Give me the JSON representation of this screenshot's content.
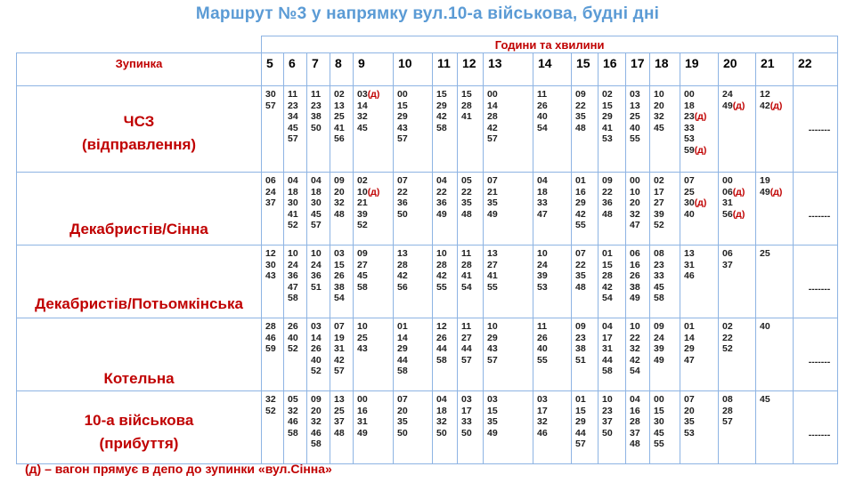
{
  "title": "Маршрут №3 у напрямку вул.10-а військова, будні дні",
  "header": {
    "group_label": "Години та хвилини",
    "stop_label": "Зупинка",
    "hours": [
      "5",
      "6",
      "7",
      "8",
      "9",
      "10",
      "11",
      "12",
      "13",
      "14",
      "15",
      "16",
      "17",
      "18",
      "19",
      "20",
      "21",
      "22"
    ]
  },
  "stops": [
    {
      "name": [
        "ЧСЗ",
        "(відправлення)"
      ],
      "cells": [
        [
          "30",
          "57"
        ],
        [
          "11",
          "23",
          "34",
          "45",
          "57"
        ],
        [
          "11",
          "23",
          "38",
          "50"
        ],
        [
          "02",
          "13",
          "25",
          "41",
          "56"
        ],
        [
          "03(д)",
          "14",
          "32",
          "45"
        ],
        [
          "00",
          "15",
          "29",
          "43",
          "57"
        ],
        [
          "15",
          "29",
          "42",
          "58"
        ],
        [
          "15",
          "28",
          "41"
        ],
        [
          "00",
          "14",
          "28",
          "42",
          "57"
        ],
        [
          "11",
          "26",
          "40",
          "54"
        ],
        [
          "09",
          "22",
          "35",
          "48"
        ],
        [
          "02",
          "15",
          "29",
          "41",
          "53"
        ],
        [
          "03",
          "13",
          "25",
          "40",
          "55"
        ],
        [
          "10",
          "20",
          "32",
          "45"
        ],
        [
          "00",
          "18",
          "23(д)",
          "33",
          "53",
          "59(д)"
        ],
        [
          "24",
          "49(д)"
        ],
        [
          "12",
          "42(д)"
        ],
        [
          "-------"
        ]
      ]
    },
    {
      "name": [
        "Декабристів/Сінна"
      ],
      "cells": [
        [
          "06",
          "24",
          "37"
        ],
        [
          "04",
          "18",
          "30",
          "41",
          "52"
        ],
        [
          "04",
          "18",
          "30",
          "45",
          "57"
        ],
        [
          "09",
          "20",
          "32",
          "48"
        ],
        [
          "02",
          "10(д)",
          "21",
          "39",
          "52"
        ],
        [
          "07",
          "22",
          "36",
          "50"
        ],
        [
          "04",
          "22",
          "36",
          "49"
        ],
        [
          "05",
          "22",
          "35",
          "48"
        ],
        [
          "07",
          "21",
          "35",
          "49"
        ],
        [
          "04",
          "18",
          "33",
          "47"
        ],
        [
          "01",
          "16",
          "29",
          "42",
          "55"
        ],
        [
          "09",
          "22",
          "36",
          "48"
        ],
        [
          "00",
          "10",
          "20",
          "32",
          "47"
        ],
        [
          "02",
          "17",
          "27",
          "39",
          "52"
        ],
        [
          "07",
          "25",
          "30(д)",
          "40"
        ],
        [
          "00",
          "06(д)",
          "31",
          "56(д)"
        ],
        [
          "19",
          "49(д)"
        ],
        [
          "-------"
        ]
      ]
    },
    {
      "name": [
        "Декабристів/Потьомкінська"
      ],
      "cells": [
        [
          "12",
          "30",
          "43"
        ],
        [
          "10",
          "24",
          "36",
          "47",
          "58"
        ],
        [
          "10",
          "24",
          "36",
          "51"
        ],
        [
          "03",
          "15",
          "26",
          "38",
          "54"
        ],
        [
          "09",
          "27",
          "45",
          "58"
        ],
        [
          "13",
          "28",
          "42",
          "56"
        ],
        [
          "10",
          "28",
          "42",
          "55"
        ],
        [
          "11",
          "28",
          "41",
          "54"
        ],
        [
          "13",
          "27",
          "41",
          "55"
        ],
        [
          "10",
          "24",
          "39",
          "53"
        ],
        [
          "07",
          "22",
          "35",
          "48"
        ],
        [
          "01",
          "15",
          "28",
          "42",
          "54"
        ],
        [
          "06",
          "16",
          "26",
          "38",
          "49"
        ],
        [
          "08",
          "23",
          "33",
          "45",
          "58"
        ],
        [
          "13",
          "31",
          "46"
        ],
        [
          "06",
          "37"
        ],
        [
          "25"
        ],
        [
          "-------"
        ]
      ]
    },
    {
      "name": [
        "Котельна"
      ],
      "cells": [
        [
          "28",
          "46",
          "59"
        ],
        [
          "26",
          "40",
          "52"
        ],
        [
          "03",
          "14",
          "26",
          "40",
          "52"
        ],
        [
          "07",
          "19",
          "31",
          "42",
          "57"
        ],
        [
          "10",
          "25",
          "43"
        ],
        [
          "01",
          "14",
          "29",
          "44",
          "58"
        ],
        [
          "12",
          "26",
          "44",
          "58"
        ],
        [
          "11",
          "27",
          "44",
          "57"
        ],
        [
          "10",
          "29",
          "43",
          "57"
        ],
        [
          "11",
          "26",
          "40",
          "55"
        ],
        [
          "09",
          "23",
          "38",
          "51"
        ],
        [
          "04",
          "17",
          "31",
          "44",
          "58"
        ],
        [
          "10",
          "22",
          "32",
          "42",
          "54"
        ],
        [
          "09",
          "24",
          "39",
          "49"
        ],
        [
          "01",
          "14",
          "29",
          "47"
        ],
        [
          "02",
          "22",
          "52"
        ],
        [
          "40"
        ],
        [
          "-------"
        ]
      ]
    },
    {
      "name": [
        "10-а військова",
        "(прибуття)"
      ],
      "cells": [
        [
          "32",
          "52"
        ],
        [
          "05",
          "32",
          "46",
          "58"
        ],
        [
          "09",
          "20",
          "32",
          "46",
          "58"
        ],
        [
          "13",
          "25",
          "37",
          "48"
        ],
        [
          "00",
          "16",
          "31",
          "49"
        ],
        [
          "07",
          "20",
          "35",
          "50"
        ],
        [
          "04",
          "18",
          "32",
          "50"
        ],
        [
          "03",
          "17",
          "33",
          "50"
        ],
        [
          "03",
          "15",
          "35",
          "49"
        ],
        [
          "03",
          "17",
          "32",
          "46"
        ],
        [
          "01",
          "15",
          "29",
          "44",
          "57"
        ],
        [
          "10",
          "23",
          "37",
          "50"
        ],
        [
          "04",
          "16",
          "28",
          "37",
          "48"
        ],
        [
          "00",
          "15",
          "30",
          "45",
          "55"
        ],
        [
          "07",
          "20",
          "35",
          "53"
        ],
        [
          "08",
          "28",
          "57"
        ],
        [
          "45"
        ],
        [
          "-------"
        ]
      ]
    }
  ],
  "note": "(д) – вагон прямує в депо до зупинки «вул.Сінна»"
}
